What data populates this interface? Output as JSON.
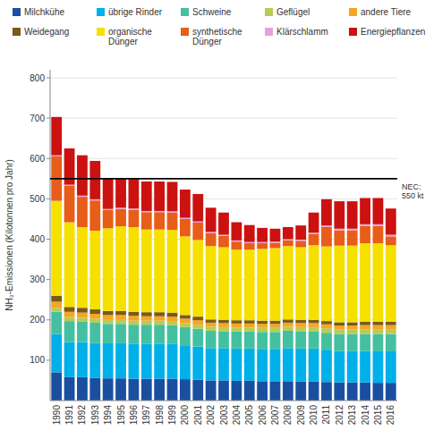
{
  "chart_data": {
    "type": "bar",
    "stacked": true,
    "grid": true,
    "ylabel": "NH₃-Emissionen (Kilotonnen pro Jahr)",
    "categories": [
      1990,
      1991,
      1992,
      1993,
      1994,
      1995,
      1996,
      1997,
      1998,
      1999,
      2000,
      2001,
      2002,
      2003,
      2004,
      2005,
      2006,
      2007,
      2008,
      2009,
      2010,
      2011,
      2012,
      2013,
      2014,
      2015,
      2016
    ],
    "ylim": [
      0,
      820
    ],
    "yticks": [
      100,
      200,
      300,
      400,
      500,
      600,
      700,
      800
    ],
    "annotations": [
      {
        "label": "NEC:\n550 kt",
        "y": 550
      }
    ],
    "series": [
      {
        "name": "Milchkühe",
        "color": "#1a4fa0",
        "values": [
          70,
          58,
          58,
          56,
          55,
          55,
          54,
          54,
          54,
          54,
          53,
          52,
          50,
          50,
          49,
          49,
          48,
          48,
          48,
          47,
          47,
          46,
          45,
          45,
          45,
          44,
          44
        ]
      },
      {
        "name": "übrige Rinder",
        "color": "#00b0e8",
        "values": [
          95,
          87,
          87,
          87,
          87,
          87,
          87,
          87,
          87,
          87,
          84,
          82,
          80,
          80,
          80,
          80,
          80,
          80,
          82,
          82,
          82,
          80,
          78,
          78,
          78,
          78,
          78
        ]
      },
      {
        "name": "Schweine",
        "color": "#44c0a0",
        "values": [
          55,
          52,
          50,
          50,
          48,
          48,
          47,
          47,
          47,
          46,
          45,
          44,
          43,
          42,
          42,
          42,
          42,
          42,
          43,
          43,
          43,
          42,
          42,
          42,
          42,
          43,
          43
        ]
      },
      {
        "name": "Geflügel",
        "color": "#b8cc55",
        "values": [
          10,
          10,
          10,
          10,
          10,
          10,
          10,
          10,
          10,
          10,
          10,
          10,
          10,
          10,
          10,
          10,
          10,
          10,
          10,
          10,
          10,
          11,
          11,
          11,
          12,
          12,
          12
        ]
      },
      {
        "name": "andere Tiere",
        "color": "#f5a623",
        "values": [
          15,
          13,
          13,
          12,
          12,
          12,
          12,
          11,
          11,
          11,
          11,
          11,
          10,
          10,
          10,
          10,
          10,
          10,
          10,
          10,
          10,
          10,
          10,
          10,
          10,
          10,
          10
        ]
      },
      {
        "name": "Weidegang",
        "color": "#7a5a18",
        "values": [
          15,
          12,
          12,
          11,
          10,
          10,
          10,
          10,
          10,
          10,
          9,
          9,
          8,
          8,
          8,
          8,
          8,
          8,
          8,
          8,
          8,
          8,
          8,
          8,
          8,
          8,
          8
        ]
      },
      {
        "name": "organische\nDünger",
        "color": "#f5e000",
        "values": [
          235,
          210,
          200,
          195,
          205,
          210,
          210,
          205,
          205,
          205,
          195,
          190,
          182,
          180,
          175,
          175,
          178,
          180,
          182,
          180,
          185,
          185,
          190,
          190,
          195,
          195,
          190
        ]
      },
      {
        "name": "synthetische\nDünger",
        "color": "#e85d18",
        "values": [
          110,
          90,
          75,
          75,
          45,
          43,
          43,
          43,
          43,
          43,
          43,
          43,
          32,
          28,
          20,
          16,
          14,
          13,
          14,
          16,
          28,
          48,
          38,
          38,
          43,
          43,
          22
        ]
      },
      {
        "name": "Klärschlamm",
        "color": "#e8a0dd",
        "values": [
          3,
          3,
          3,
          3,
          3,
          3,
          3,
          3,
          3,
          3,
          3,
          3,
          3,
          3,
          3,
          3,
          3,
          3,
          3,
          3,
          3,
          4,
          4,
          4,
          4,
          4,
          4
        ]
      },
      {
        "name": "Energiepflanzen",
        "color": "#cc1111",
        "values": [
          95,
          90,
          100,
          95,
          75,
          72,
          73,
          73,
          73,
          73,
          70,
          68,
          60,
          55,
          45,
          42,
          35,
          32,
          30,
          35,
          50,
          65,
          68,
          68,
          65,
          65,
          65
        ]
      }
    ]
  }
}
